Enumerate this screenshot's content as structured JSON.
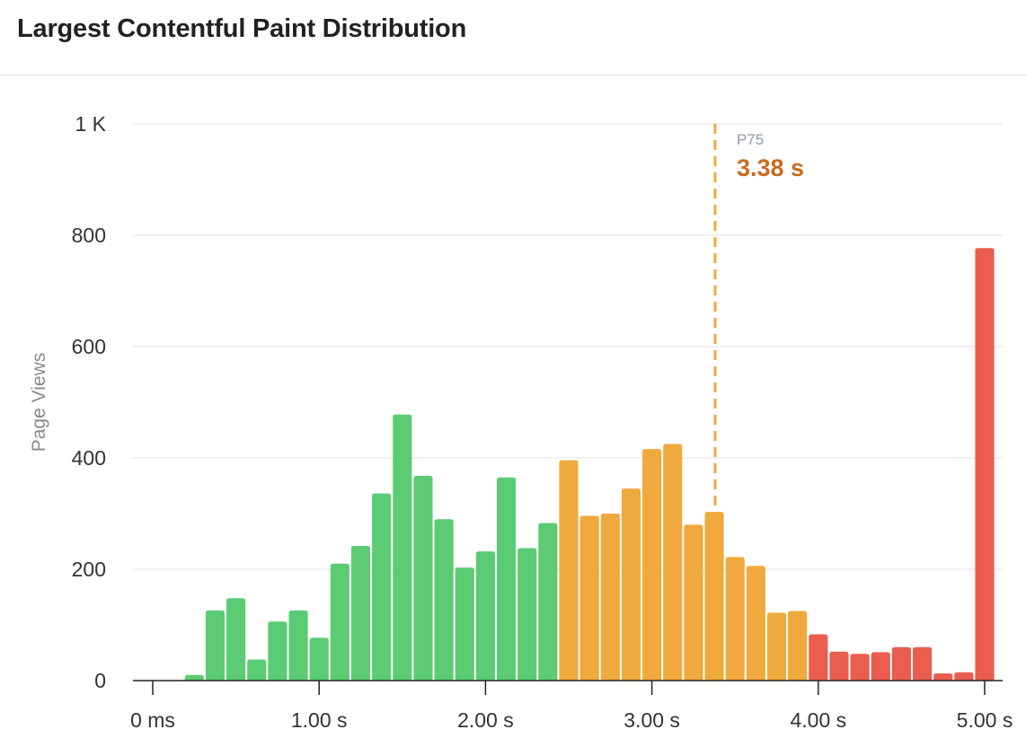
{
  "header": {
    "title": "Largest Contentful Paint Distribution"
  },
  "chart_data": {
    "type": "bar",
    "title": "Largest Contentful Paint Distribution",
    "xlabel": "",
    "ylabel": "Page Views",
    "xlim": [
      0,
      5.0
    ],
    "ylim": [
      0,
      1000
    ],
    "x_ticks": [
      {
        "value": 0,
        "label": "0 ms"
      },
      {
        "value": 1.0,
        "label": "1.00 s"
      },
      {
        "value": 2.0,
        "label": "2.00 s"
      },
      {
        "value": 3.0,
        "label": "3.00 s"
      },
      {
        "value": 4.0,
        "label": "4.00 s"
      },
      {
        "value": 5.0,
        "label": "5.00 s"
      }
    ],
    "y_ticks": [
      {
        "value": 0,
        "label": "0"
      },
      {
        "value": 200,
        "label": "200"
      },
      {
        "value": 400,
        "label": "400"
      },
      {
        "value": 600,
        "label": "600"
      },
      {
        "value": 800,
        "label": "800"
      },
      {
        "value": 1000,
        "label": "1 K"
      }
    ],
    "grid": true,
    "bin_width": 0.125,
    "bins": [
      {
        "x": 0.25,
        "value": 10
      },
      {
        "x": 0.375,
        "value": 126
      },
      {
        "x": 0.5,
        "value": 148
      },
      {
        "x": 0.625,
        "value": 38
      },
      {
        "x": 0.75,
        "value": 106
      },
      {
        "x": 0.875,
        "value": 126
      },
      {
        "x": 1.0,
        "value": 77
      },
      {
        "x": 1.125,
        "value": 210
      },
      {
        "x": 1.25,
        "value": 242
      },
      {
        "x": 1.375,
        "value": 336
      },
      {
        "x": 1.5,
        "value": 478
      },
      {
        "x": 1.625,
        "value": 368
      },
      {
        "x": 1.75,
        "value": 290
      },
      {
        "x": 1.875,
        "value": 203
      },
      {
        "x": 2.0,
        "value": 232
      },
      {
        "x": 2.125,
        "value": 365
      },
      {
        "x": 2.25,
        "value": 238
      },
      {
        "x": 2.375,
        "value": 283
      },
      {
        "x": 2.5,
        "value": 396
      },
      {
        "x": 2.625,
        "value": 296
      },
      {
        "x": 2.75,
        "value": 300
      },
      {
        "x": 2.875,
        "value": 345
      },
      {
        "x": 3.0,
        "value": 416
      },
      {
        "x": 3.125,
        "value": 425
      },
      {
        "x": 3.25,
        "value": 280
      },
      {
        "x": 3.375,
        "value": 303
      },
      {
        "x": 3.5,
        "value": 222
      },
      {
        "x": 3.625,
        "value": 206
      },
      {
        "x": 3.75,
        "value": 122
      },
      {
        "x": 3.875,
        "value": 125
      },
      {
        "x": 4.0,
        "value": 83
      },
      {
        "x": 4.125,
        "value": 52
      },
      {
        "x": 4.25,
        "value": 48
      },
      {
        "x": 4.375,
        "value": 51
      },
      {
        "x": 4.5,
        "value": 60
      },
      {
        "x": 4.625,
        "value": 60
      },
      {
        "x": 4.75,
        "value": 13
      },
      {
        "x": 4.875,
        "value": 15
      },
      {
        "x": 5.0,
        "value": 777
      }
    ],
    "thresholds": {
      "good_max": 2.5,
      "needs_improvement_max": 4.0
    },
    "colors": {
      "good": "#5bcc74",
      "needs_improvement": "#f0a93c",
      "poor": "#ea5d4f",
      "p75_value": "#c96b1f",
      "marker_line": "#f0a93c"
    },
    "marker": {
      "x": 3.38,
      "label": "P75",
      "value_label": "3.38 s"
    }
  }
}
